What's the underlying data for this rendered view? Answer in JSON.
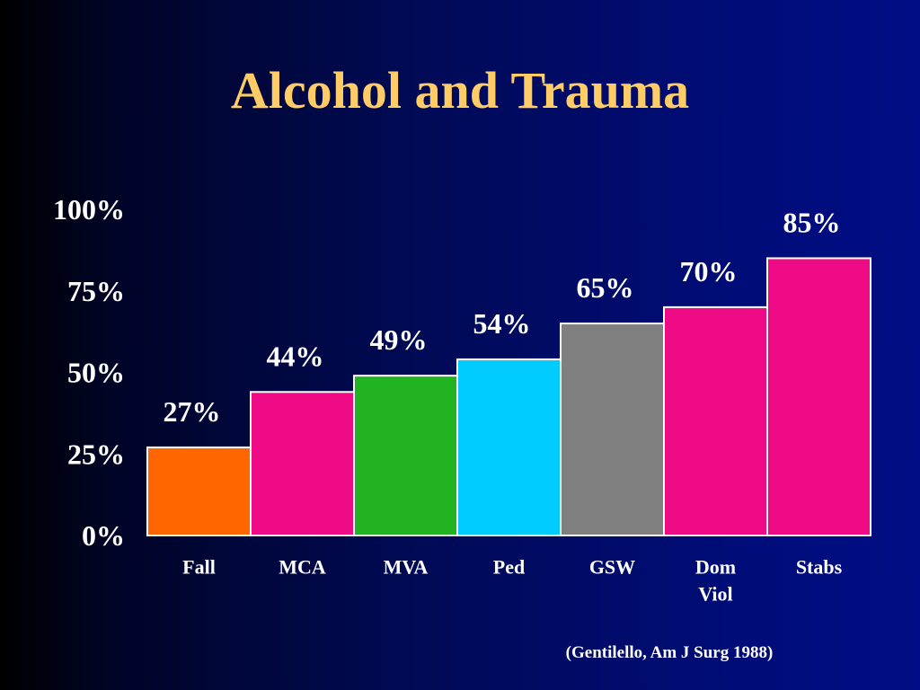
{
  "slide": {
    "title": "Alcohol and Trauma",
    "citation": "(Gentilello, Am J Surg 1988)"
  },
  "chart_data": {
    "type": "bar",
    "title": "Alcohol and Trauma",
    "categories": [
      [
        "Fall"
      ],
      [
        "MCA"
      ],
      [
        "MVA"
      ],
      [
        "Ped"
      ],
      [
        "GSW"
      ],
      [
        "Dom",
        "Viol"
      ],
      [
        "Stabs"
      ]
    ],
    "values": [
      27,
      44,
      49,
      54,
      65,
      70,
      85
    ],
    "value_labels": [
      "27%",
      "44%",
      "49%",
      "54%",
      "65%",
      "70%",
      "85%"
    ],
    "colors": [
      "#ff6600",
      "#ee0b85",
      "#21b321",
      "#00ccff",
      "#808080",
      "#ee0b85",
      "#ee0b85"
    ],
    "y_ticks": [
      0,
      25,
      50,
      75,
      100
    ],
    "y_tick_labels": [
      "0%",
      "25%",
      "50%",
      "75%",
      "100%"
    ],
    "ylim": [
      0,
      100
    ],
    "xlabel": "",
    "ylabel": "",
    "grid": false,
    "legend": "none"
  }
}
